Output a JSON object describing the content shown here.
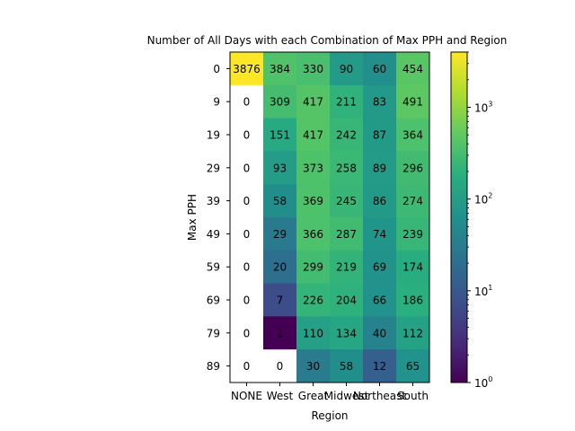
{
  "chart_data": {
    "type": "heatmap",
    "title": "Number of All Days with each Combination of Max PPH and Region",
    "xlabel": "Region",
    "ylabel": "Max PPH",
    "x_categories": [
      "NONE",
      "West",
      "Great Plains",
      "Midwest",
      "Northeast",
      "South"
    ],
    "x_tick_labels": [
      "NONE",
      "West",
      "Great",
      "Midwest",
      "Northeast",
      "South"
    ],
    "y_categories": [
      "0",
      "9",
      "19",
      "29",
      "39",
      "49",
      "59",
      "69",
      "79",
      "89"
    ],
    "values": [
      [
        3876,
        384,
        330,
        90,
        60,
        454
      ],
      [
        0,
        309,
        417,
        211,
        83,
        491
      ],
      [
        0,
        151,
        417,
        242,
        87,
        364
      ],
      [
        0,
        93,
        373,
        258,
        89,
        296
      ],
      [
        0,
        58,
        369,
        245,
        86,
        274
      ],
      [
        0,
        29,
        366,
        287,
        74,
        239
      ],
      [
        0,
        20,
        299,
        219,
        69,
        174
      ],
      [
        0,
        7,
        226,
        204,
        66,
        186
      ],
      [
        0,
        1,
        110,
        134,
        40,
        112
      ],
      [
        0,
        0,
        30,
        58,
        12,
        65
      ]
    ],
    "color_scale": "log",
    "colormap": "viridis",
    "zero_color": "#ffffff",
    "colorbar_range": [
      1,
      4000
    ],
    "colorbar_ticks": [
      {
        "base": "10",
        "exp": "0"
      },
      {
        "base": "10",
        "exp": "1"
      },
      {
        "base": "10",
        "exp": "2"
      },
      {
        "base": "10",
        "exp": "3"
      }
    ],
    "grid": false
  }
}
